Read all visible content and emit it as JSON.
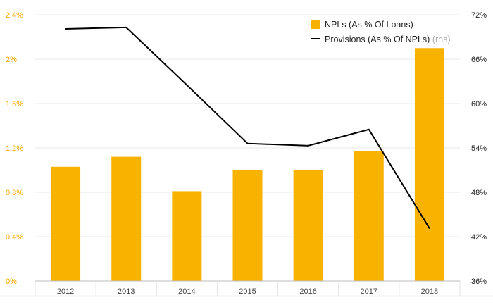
{
  "chart_data": {
    "type": "bar",
    "categories": [
      "2012",
      "2013",
      "2014",
      "2015",
      "2016",
      "2017",
      "2018"
    ],
    "series": [
      {
        "name": "NPLs (As % Of Loans)",
        "kind": "bar",
        "axis": "left",
        "color": "#f8b200",
        "values": [
          1.03,
          1.12,
          0.81,
          1.0,
          1.0,
          1.17,
          2.1
        ]
      },
      {
        "name": "Provisions (As % Of NPLs)",
        "name_suffix": "(rhs)",
        "kind": "line",
        "axis": "right",
        "color": "#000000",
        "values": [
          70.1,
          70.3,
          62.5,
          54.6,
          54.3,
          56.5,
          43.1
        ]
      }
    ],
    "y_left": {
      "ylim": [
        0,
        2.4
      ],
      "ticks": [
        0,
        0.4,
        0.8,
        1.2,
        1.6,
        2.0,
        2.4
      ],
      "tick_labels": [
        "0%",
        "0.4%",
        "0.8%",
        "1.2%",
        "1.6%",
        "2%",
        "2.4%"
      ],
      "label_color": "#f5a800"
    },
    "y_right": {
      "ylim": [
        36,
        72
      ],
      "ticks": [
        36,
        42,
        48,
        54,
        60,
        66,
        72
      ],
      "tick_labels": [
        "36%",
        "42%",
        "48%",
        "54%",
        "60%",
        "66%",
        "72%"
      ],
      "label_color": "#222222"
    },
    "grid": "horizontal",
    "legend_position": "top-right",
    "title": "",
    "xlabel": "",
    "ylabel": ""
  }
}
